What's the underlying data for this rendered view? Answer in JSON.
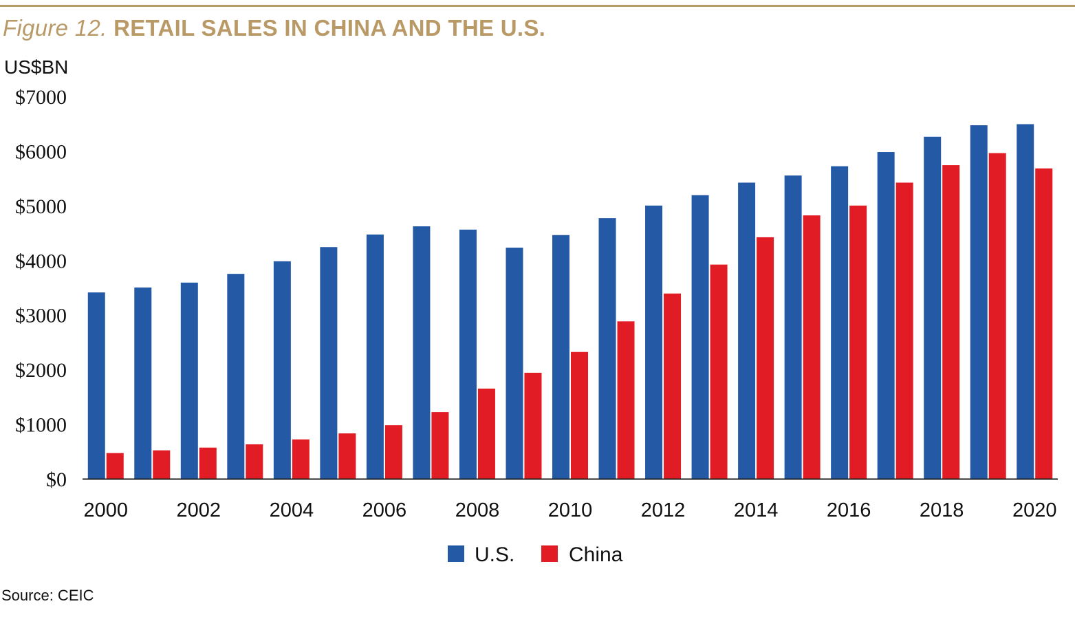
{
  "header": {
    "figure_label": "Figure 12.",
    "title": "RETAIL SALES IN CHINA AND THE U.S.",
    "unit": "US$BN"
  },
  "source": "Source: CEIC",
  "colors": {
    "accent": "#b99a67",
    "us": "#245aa5",
    "china": "#e11c24",
    "axis": "#222222"
  },
  "chart_data": {
    "type": "bar",
    "title": "RETAIL SALES IN CHINA AND THE U.S.",
    "xlabel": "",
    "ylabel": "US$BN",
    "ylim": [
      0,
      7000
    ],
    "grid": false,
    "legend_position": "bottom-center",
    "categories": [
      "2000",
      "2001",
      "2002",
      "2003",
      "2004",
      "2005",
      "2006",
      "2007",
      "2008",
      "2009",
      "2010",
      "2011",
      "2012",
      "2013",
      "2014",
      "2015",
      "2016",
      "2017",
      "2018",
      "2019",
      "2020"
    ],
    "x_tick_labels": [
      "2000",
      "2002",
      "2004",
      "2006",
      "2008",
      "2010",
      "2012",
      "2014",
      "2016",
      "2018",
      "2020"
    ],
    "y_tick_values": [
      0,
      1000,
      2000,
      3000,
      4000,
      5000,
      6000,
      7000
    ],
    "y_tick_labels": [
      "$0",
      "$1000",
      "$2000",
      "$3000",
      "$4000",
      "$5000",
      "$6000",
      "$7000"
    ],
    "series": [
      {
        "name": "U.S.",
        "values": [
          3410,
          3500,
          3590,
          3750,
          3980,
          4240,
          4470,
          4620,
          4560,
          4230,
          4460,
          4770,
          5000,
          5190,
          5420,
          5550,
          5720,
          5980,
          6260,
          6470,
          6490
        ]
      },
      {
        "name": "China",
        "values": [
          470,
          520,
          570,
          630,
          720,
          830,
          980,
          1220,
          1650,
          1940,
          2320,
          2880,
          3390,
          3920,
          4420,
          4820,
          5000,
          5420,
          5740,
          5960,
          5680
        ]
      }
    ]
  }
}
